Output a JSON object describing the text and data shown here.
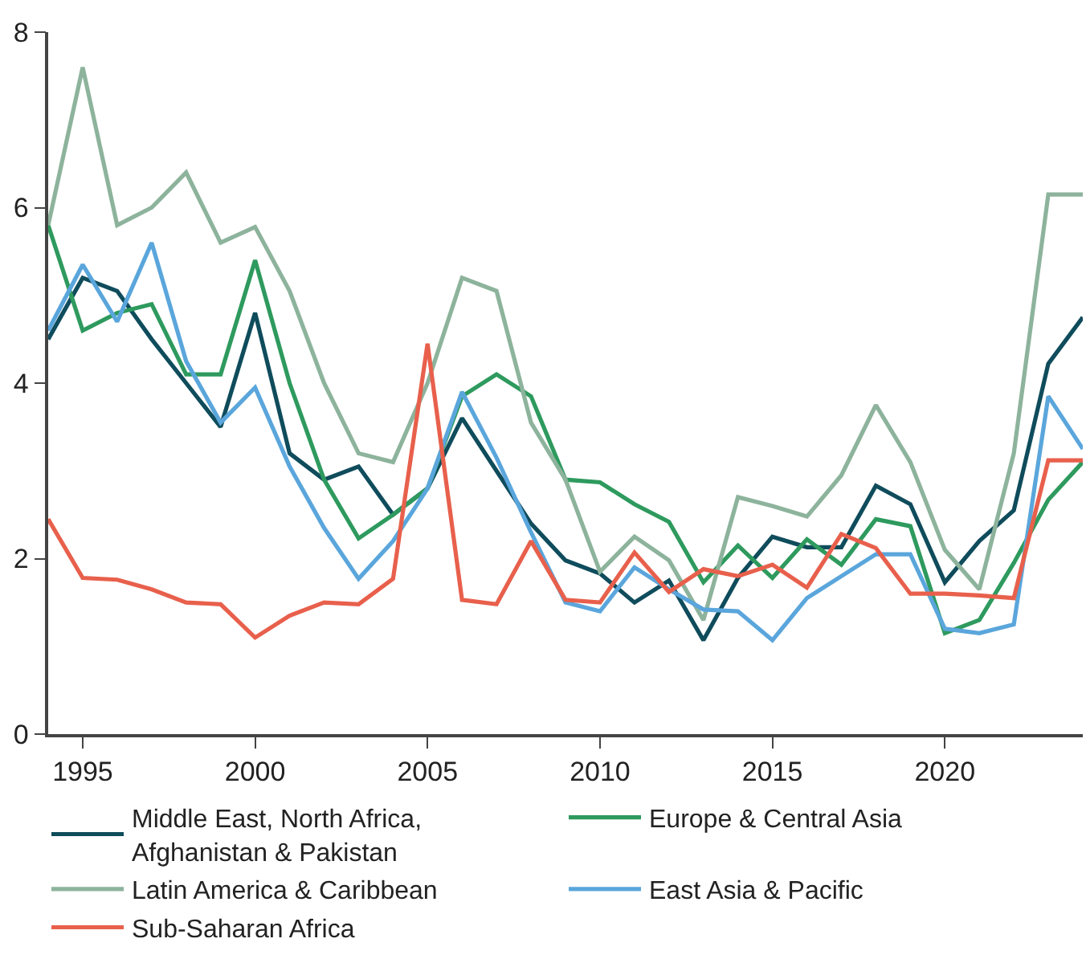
{
  "chart_data": {
    "type": "line",
    "x": [
      1994,
      1995,
      1996,
      1997,
      1998,
      1999,
      2000,
      2001,
      2002,
      2003,
      2004,
      2005,
      2006,
      2007,
      2008,
      2009,
      2010,
      2011,
      2012,
      2013,
      2014,
      2015,
      2016,
      2017,
      2018,
      2019,
      2020,
      2021,
      2022,
      2023,
      2024
    ],
    "series": [
      {
        "name": "Middle East, North Africa, Afghanistan & Pakistan",
        "color": "#0f4c5c",
        "values": [
          4.5,
          5.2,
          5.05,
          4.5,
          4.0,
          3.5,
          4.8,
          3.2,
          2.9,
          3.05,
          2.5,
          2.8,
          3.6,
          3.0,
          2.4,
          1.98,
          1.83,
          1.5,
          1.75,
          1.07,
          1.78,
          2.25,
          2.13,
          2.13,
          2.83,
          2.62,
          1.73,
          2.2,
          2.55,
          4.22,
          4.75
        ]
      },
      {
        "name": "Europe & Central Asia",
        "color": "#2e9a5e",
        "values": [
          5.8,
          4.6,
          4.8,
          4.9,
          4.1,
          4.1,
          5.4,
          4.0,
          2.9,
          2.23,
          2.5,
          2.8,
          3.85,
          4.1,
          3.85,
          2.9,
          2.87,
          2.62,
          2.42,
          1.73,
          2.15,
          1.78,
          2.22,
          1.93,
          2.45,
          2.37,
          1.15,
          1.3,
          1.95,
          2.67,
          3.1
        ]
      },
      {
        "name": "Latin America & Caribbean",
        "color": "#8db39c",
        "values": [
          5.8,
          7.6,
          5.8,
          6.0,
          6.4,
          5.6,
          5.78,
          5.05,
          4.0,
          3.2,
          3.1,
          4.0,
          5.2,
          5.05,
          3.55,
          2.9,
          1.85,
          2.25,
          1.98,
          1.3,
          2.7,
          2.6,
          2.48,
          2.95,
          3.75,
          3.1,
          2.1,
          1.65,
          3.2,
          6.15,
          6.15
        ]
      },
      {
        "name": "East Asia & Pacific",
        "color": "#5aa6dc",
        "values": [
          4.6,
          5.35,
          4.7,
          5.6,
          4.25,
          3.55,
          3.95,
          3.05,
          2.35,
          1.77,
          2.2,
          2.8,
          3.9,
          3.15,
          2.3,
          1.5,
          1.4,
          1.9,
          1.65,
          1.42,
          1.4,
          1.07,
          1.55,
          1.8,
          2.05,
          2.05,
          1.2,
          1.15,
          1.25,
          3.85,
          3.25
        ]
      },
      {
        "name": "Sub-Saharan Africa",
        "color": "#e8604c",
        "values": [
          2.45,
          1.78,
          1.76,
          1.65,
          1.5,
          1.48,
          1.1,
          1.35,
          1.5,
          1.48,
          1.77,
          4.45,
          1.53,
          1.48,
          2.2,
          1.53,
          1.5,
          2.07,
          1.62,
          1.88,
          1.8,
          1.93,
          1.67,
          2.28,
          2.12,
          1.6,
          1.6,
          1.58,
          1.55,
          3.12,
          3.12
        ]
      }
    ],
    "xlim": [
      1994,
      2024
    ],
    "xticks": [
      1995,
      2000,
      2005,
      2010,
      2015,
      2020
    ],
    "ylim": [
      0,
      8
    ],
    "yticks": [
      0,
      2,
      4,
      6,
      8
    ],
    "legend": "bottom",
    "marker": "none",
    "line_style": "solid"
  }
}
